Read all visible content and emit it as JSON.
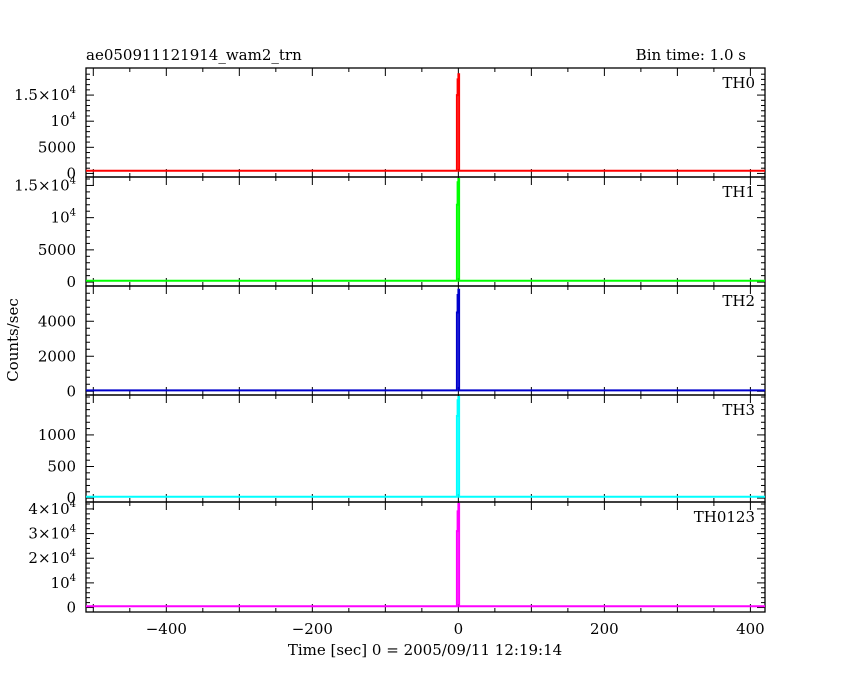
{
  "chart_data": {
    "type": "line",
    "title": "ae050911121914_wam2_trn",
    "bin_time_label": "Bin time: 1.0 s",
    "xlabel": "Time [sec] 0 = 2005/09/11 12:19:14",
    "ylabel": "Counts/sec",
    "xlim": [
      -510,
      420
    ],
    "x_ticks": [
      -400,
      -200,
      0,
      200,
      400
    ],
    "x_tick_labels": [
      "−400",
      "−200",
      "0",
      "200",
      "400"
    ],
    "panels": [
      {
        "name": "TH0",
        "color": "#ff0000",
        "ylim": [
          -300,
          19800
        ],
        "y_ticks": [
          {
            "v": 0,
            "mant": "0",
            "exp": ""
          },
          {
            "v": 5000,
            "mant": "5000",
            "exp": ""
          },
          {
            "v": 10000,
            "mant": "10",
            "exp": "4"
          },
          {
            "v": 15000,
            "mant": "1.5×10",
            "exp": "4"
          }
        ],
        "baseline": 500,
        "data": {
          "x": [
            -510,
            -3,
            -2,
            -1,
            0,
            1,
            420
          ],
          "y": [
            500,
            500,
            15000,
            18000,
            19000,
            500,
            500
          ]
        }
      },
      {
        "name": "TH1",
        "color": "#00ff00",
        "ylim": [
          -300,
          16000
        ],
        "y_ticks": [
          {
            "v": 0,
            "mant": "0",
            "exp": ""
          },
          {
            "v": 5000,
            "mant": "5000",
            "exp": ""
          },
          {
            "v": 10000,
            "mant": "10",
            "exp": "4"
          },
          {
            "v": 15000,
            "mant": "1.5×10",
            "exp": "4"
          }
        ],
        "baseline": 200,
        "data": {
          "x": [
            -510,
            -3,
            -2,
            -1,
            0,
            1,
            420
          ],
          "y": [
            200,
            200,
            12000,
            15500,
            16000,
            200,
            200
          ]
        }
      },
      {
        "name": "TH2",
        "color": "#0000cc",
        "ylim": [
          -100,
          5900
        ],
        "y_ticks": [
          {
            "v": 0,
            "mant": "0",
            "exp": ""
          },
          {
            "v": 2000,
            "mant": "2000",
            "exp": ""
          },
          {
            "v": 4000,
            "mant": "4000",
            "exp": ""
          }
        ],
        "baseline": 50,
        "data": {
          "x": [
            -510,
            -3,
            -2,
            -1,
            0,
            1,
            420
          ],
          "y": [
            50,
            50,
            4500,
            5500,
            5800,
            50,
            50
          ]
        }
      },
      {
        "name": "TH3",
        "color": "#00ffff",
        "ylim": [
          -30,
          1600
        ],
        "y_ticks": [
          {
            "v": 0,
            "mant": "0",
            "exp": ""
          },
          {
            "v": 500,
            "mant": "500",
            "exp": ""
          },
          {
            "v": 1000,
            "mant": "1000",
            "exp": ""
          }
        ],
        "baseline": 20,
        "data": {
          "x": [
            -510,
            -3,
            -2,
            -1,
            0,
            1,
            420
          ],
          "y": [
            20,
            20,
            1300,
            1550,
            1600,
            20,
            20
          ]
        }
      },
      {
        "name": "TH0123",
        "color": "#ff00ff",
        "ylim": [
          -1000,
          42000
        ],
        "y_ticks": [
          {
            "v": 0,
            "mant": "0",
            "exp": ""
          },
          {
            "v": 10000,
            "mant": "10",
            "exp": "4"
          },
          {
            "v": 20000,
            "mant": "2×10",
            "exp": "4"
          },
          {
            "v": 30000,
            "mant": "3×10",
            "exp": "4"
          },
          {
            "v": 40000,
            "mant": "4×10",
            "exp": "4"
          }
        ],
        "baseline": 500,
        "data": {
          "x": [
            -510,
            -3,
            -2,
            -1,
            0,
            1,
            420
          ],
          "y": [
            500,
            500,
            31000,
            39000,
            42000,
            500,
            500
          ]
        }
      }
    ]
  }
}
